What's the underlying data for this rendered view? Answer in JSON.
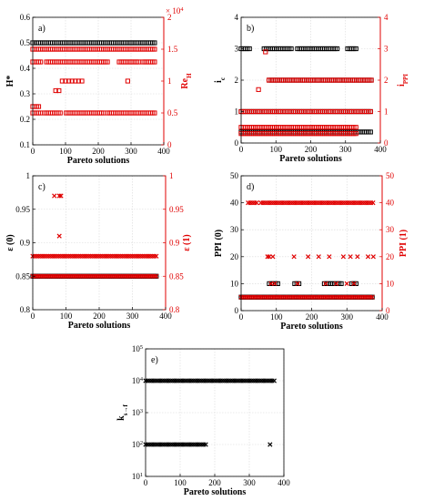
{
  "chart_data": [
    {
      "id": "a",
      "type": "scatter",
      "panel_label": "a)",
      "xlabel": "Pareto solutions",
      "ylabel": "H*",
      "ylabel_right": "Re_H",
      "right_exponent": "× 10^4",
      "xlim": [
        0,
        400
      ],
      "ylim": [
        0.1,
        0.6
      ],
      "ylim_right": [
        0,
        2
      ],
      "xticks": [
        0,
        100,
        200,
        300,
        400
      ],
      "yticks": [
        0.1,
        0.2,
        0.3,
        0.4,
        0.5,
        0.6
      ],
      "yticks_right": [
        0,
        0.5,
        1,
        1.5,
        2
      ],
      "grid": true,
      "series": [
        {
          "axis": "left",
          "color": "#000000",
          "marker": "square",
          "bands": [
            {
              "y": 0.5,
              "x": [
                0,
                375
              ],
              "gaps": []
            }
          ]
        },
        {
          "axis": "right",
          "color": "#e00000",
          "marker": "square",
          "bands": [
            {
              "y": 1.5,
              "x": [
                0,
                375
              ],
              "gaps": []
            },
            {
              "y": 1.3,
              "x": [
                0,
                375
              ],
              "gaps": [
                [
                  30,
                  40
                ],
                [
                  230,
                  260
                ],
                [
                  325,
                  335
                ]
              ]
            },
            {
              "y": 0.5,
              "x": [
                0,
                375
              ],
              "gaps": [
                [
                  25,
                  30
                ],
                [
                  90,
                  100
                ],
                [
                  220,
                  225
                ]
              ]
            },
            {
              "y": 0.6,
              "x": [
                0,
                20
              ],
              "gaps": []
            }
          ],
          "points": [
            [
              70,
              0.85
            ],
            [
              80,
              0.85
            ],
            [
              90,
              1.0
            ],
            [
              100,
              1.0
            ],
            [
              110,
              1.0
            ],
            [
              120,
              1.0
            ],
            [
              130,
              1.0
            ],
            [
              140,
              1.0
            ],
            [
              150,
              1.0
            ],
            [
              290,
              1.0
            ]
          ]
        }
      ]
    },
    {
      "id": "b",
      "type": "scatter",
      "panel_label": "b)",
      "xlabel": "Pareto solutions",
      "ylabel": "i_c",
      "ylabel_right": "i_PPI",
      "xlim": [
        0,
        400
      ],
      "ylim": [
        0,
        4
      ],
      "ylim_right": [
        0,
        4
      ],
      "xticks": [
        0,
        100,
        200,
        300,
        400
      ],
      "yticks": [
        0,
        1,
        2,
        3,
        4
      ],
      "yticks_right": [
        0,
        1,
        2,
        3,
        4
      ],
      "grid": true,
      "series": [
        {
          "axis": "left",
          "color": "#000000",
          "marker": "square",
          "bands": [
            {
              "y": 3,
              "x": [
                0,
                330
              ],
              "gaps": [
                [
                  25,
                  60
                ],
                [
                  150,
                  160
                ],
                [
                  280,
                  300
                ]
              ]
            },
            {
              "y": 2,
              "x": [
                80,
                375
              ],
              "gaps": []
            },
            {
              "y": 1,
              "x": [
                0,
                375
              ],
              "gaps": []
            },
            {
              "y": 0.35,
              "x": [
                0,
                375
              ],
              "gaps": []
            }
          ]
        },
        {
          "axis": "right",
          "color": "#e00000",
          "marker": "square",
          "bands": [
            {
              "y": 2,
              "x": [
                80,
                375
              ],
              "gaps": []
            },
            {
              "y": 1,
              "x": [
                0,
                375
              ],
              "gaps": []
            },
            {
              "y": 0.5,
              "x": [
                0,
                330
              ],
              "gaps": []
            },
            {
              "y": 0.3,
              "x": [
                0,
                330
              ],
              "gaps": []
            }
          ],
          "points": [
            [
              50,
              1.7
            ],
            [
              70,
              2.9
            ]
          ]
        }
      ]
    },
    {
      "id": "c",
      "type": "scatter",
      "panel_label": "c)",
      "xlabel": "Pareto solutions",
      "ylabel": "ε (0)",
      "ylabel_right": "ε (1)",
      "xlim": [
        0,
        400
      ],
      "ylim": [
        0.8,
        1
      ],
      "ylim_right": [
        0.8,
        1
      ],
      "xticks": [
        0,
        100,
        200,
        300,
        400
      ],
      "yticks": [
        0.8,
        0.85,
        0.9,
        0.95,
        1
      ],
      "yticks_right": [
        0.8,
        0.85,
        0.9,
        0.95,
        1
      ],
      "grid": true,
      "series": [
        {
          "axis": "left",
          "color": "#000000",
          "marker": "square",
          "bands": [
            {
              "y": 0.85,
              "x": [
                0,
                375
              ],
              "gaps": []
            }
          ]
        },
        {
          "axis": "right",
          "color": "#e00000",
          "marker": "x",
          "bands": [
            {
              "y": 0.88,
              "x": [
                0,
                375
              ],
              "gaps": []
            },
            {
              "y": 0.85,
              "x": [
                0,
                375
              ],
              "gaps": []
            }
          ],
          "points": [
            [
              65,
              0.97
            ],
            [
              80,
              0.97
            ],
            [
              85,
              0.97
            ],
            [
              80,
              0.91
            ]
          ]
        }
      ]
    },
    {
      "id": "d",
      "type": "scatter",
      "panel_label": "d)",
      "xlabel": "Pareto solutions",
      "ylabel": "PPI (0)",
      "ylabel_right": "PPI (1)",
      "xlim": [
        0,
        400
      ],
      "ylim": [
        0,
        50
      ],
      "ylim_right": [
        0,
        50
      ],
      "xticks": [
        0,
        100,
        200,
        300,
        400
      ],
      "yticks": [
        0,
        10,
        20,
        30,
        40,
        50
      ],
      "yticks_right": [
        0,
        10,
        20,
        30,
        40,
        50
      ],
      "grid": true,
      "series": [
        {
          "axis": "left",
          "color": "#000000",
          "marker": "square",
          "bands": [
            {
              "y": 10,
              "x": [
                80,
                330
              ],
              "gaps": [
                [
                  110,
                  150
                ],
                [
                  170,
                  230
                ],
                [
                  290,
                  310
                ]
              ]
            },
            {
              "y": 5,
              "x": [
                0,
                375
              ],
              "gaps": []
            }
          ]
        },
        {
          "axis": "right",
          "color": "#e00000",
          "marker": "x",
          "bands": [
            {
              "y": 40,
              "x": [
                20,
                375
              ],
              "gaps": [
                [
                  45,
                  55
                ]
              ]
            },
            {
              "y": 5,
              "x": [
                0,
                375
              ],
              "gaps": []
            }
          ],
          "points": [
            [
              75,
              20
            ],
            [
              80,
              20
            ],
            [
              90,
              20
            ],
            [
              150,
              20
            ],
            [
              190,
              20
            ],
            [
              220,
              20
            ],
            [
              250,
              20
            ],
            [
              290,
              20
            ],
            [
              310,
              20
            ],
            [
              330,
              20
            ],
            [
              360,
              20
            ],
            [
              375,
              20
            ],
            [
              85,
              10
            ],
            [
              95,
              10
            ],
            [
              160,
              10
            ],
            [
              240,
              10
            ],
            [
              270,
              10
            ],
            [
              300,
              10
            ],
            [
              320,
              10
            ]
          ]
        }
      ]
    },
    {
      "id": "e",
      "type": "scatter",
      "panel_label": "e)",
      "xlabel": "Pareto solutions",
      "ylabel": "k_{s→f}",
      "xlim": [
        0,
        400
      ],
      "ylim": [
        1,
        5
      ],
      "yscale": "log",
      "xticks": [
        0,
        100,
        200,
        300,
        400
      ],
      "yticks": [
        1,
        2,
        3,
        4,
        5
      ],
      "ytick_labels": [
        "10^1",
        "10^2",
        "10^3",
        "10^4",
        "10^5"
      ],
      "grid": true,
      "series": [
        {
          "axis": "left",
          "color": "#000000",
          "marker": "x",
          "bands": [
            {
              "y": 4,
              "x": [
                0,
                375
              ],
              "gaps": []
            },
            {
              "y": 2,
              "x": [
                0,
                175
              ],
              "gaps": []
            }
          ],
          "points": [
            [
              360,
              2
            ]
          ]
        }
      ]
    }
  ]
}
